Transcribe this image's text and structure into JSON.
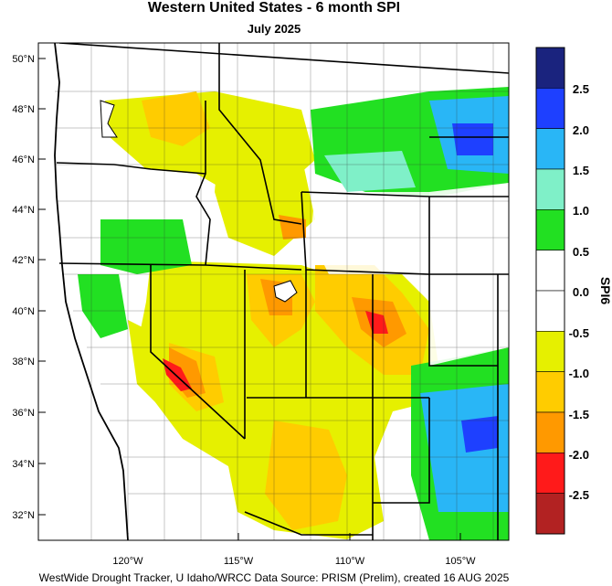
{
  "header": {
    "title": "Western United States - 6 month SPI",
    "subtitle": "July 2025"
  },
  "footer": {
    "credit": "WestWide Drought Tracker, U Idaho/WRCC Data Source: PRISM (Prelim), created 16 AUG 2025"
  },
  "map": {
    "lat_labels": [
      "50°N",
      "48°N",
      "46°N",
      "44°N",
      "42°N",
      "40°N",
      "38°N",
      "36°N",
      "34°N",
      "32°N"
    ],
    "lon_labels": [
      "120°W",
      "115°W",
      "110°W",
      "105°W"
    ],
    "colors": {
      "border": "#000000",
      "county": "#333333"
    }
  },
  "legend": {
    "title": "SPI6",
    "tick_labels": [
      "2.5",
      "2.0",
      "1.5",
      "1.0",
      "0.5",
      "0.0",
      "-0.5",
      "-1.0",
      "-1.5",
      "-2.0",
      "-2.5"
    ],
    "bins": [
      {
        "color": "#1a237e"
      },
      {
        "color": "#1e40ff"
      },
      {
        "color": "#29b6f6"
      },
      {
        "color": "#7ff0c8"
      },
      {
        "color": "#22e022"
      },
      {
        "color": "#ffffff"
      },
      {
        "color": "#ffffff"
      },
      {
        "color": "#e6f000"
      },
      {
        "color": "#ffcc00"
      },
      {
        "color": "#ff9900"
      },
      {
        "color": "#ff1a1a"
      },
      {
        "color": "#b22222"
      }
    ]
  }
}
